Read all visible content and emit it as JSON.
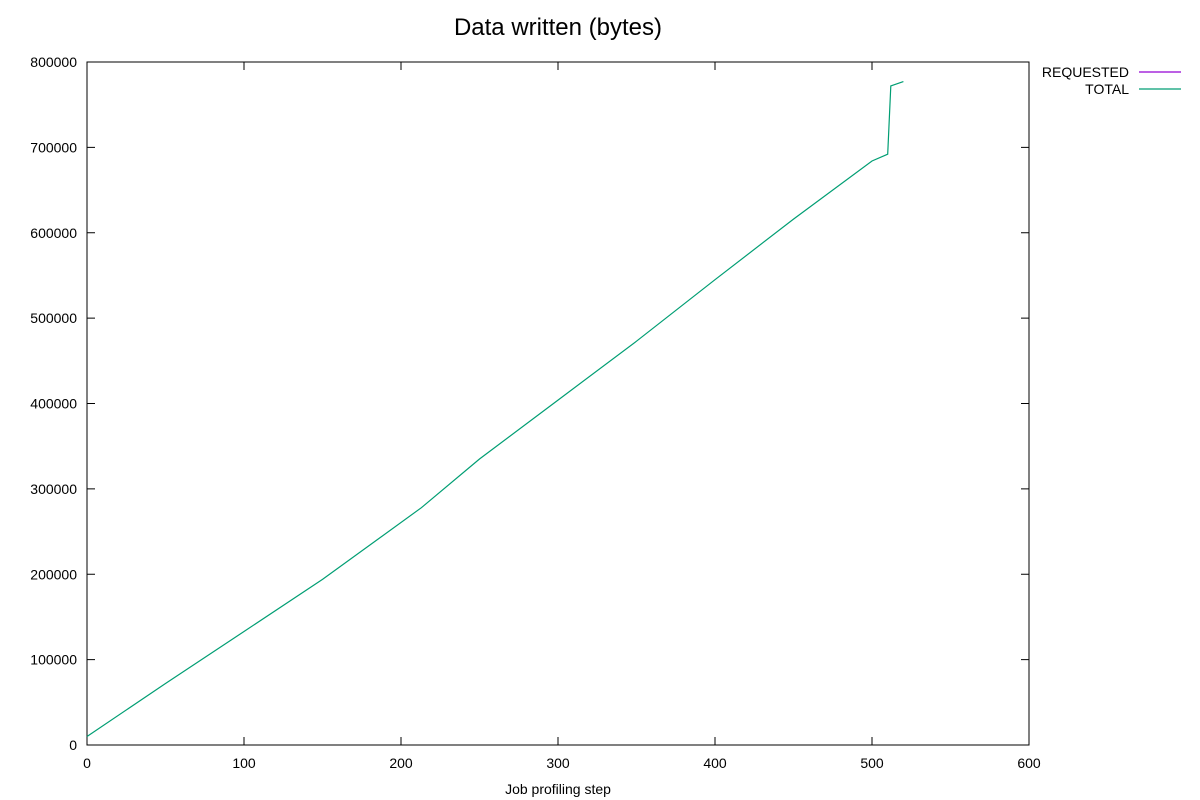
{
  "chart_data": {
    "type": "line",
    "title": "Data written (bytes)",
    "xlabel": "Job profiling step",
    "ylabel": "",
    "xlim": [
      0,
      600
    ],
    "ylim": [
      0,
      800000
    ],
    "xticks": [
      0,
      100,
      200,
      300,
      400,
      500,
      600
    ],
    "yticks": [
      0,
      100000,
      200000,
      300000,
      400000,
      500000,
      600000,
      700000,
      800000
    ],
    "grid": false,
    "legend_position": "top-right",
    "series": [
      {
        "name": "REQUESTED",
        "color": "#9400d3",
        "x": [],
        "y": []
      },
      {
        "name": "TOTAL",
        "color": "#009e73",
        "x": [
          0,
          50,
          100,
          150,
          213,
          250,
          300,
          350,
          400,
          450,
          500,
          510,
          512,
          520
        ],
        "y": [
          10000,
          72000,
          133000,
          194000,
          278000,
          335000,
          404000,
          473000,
          545000,
          616000,
          684000,
          692000,
          772000,
          777000
        ]
      }
    ]
  }
}
